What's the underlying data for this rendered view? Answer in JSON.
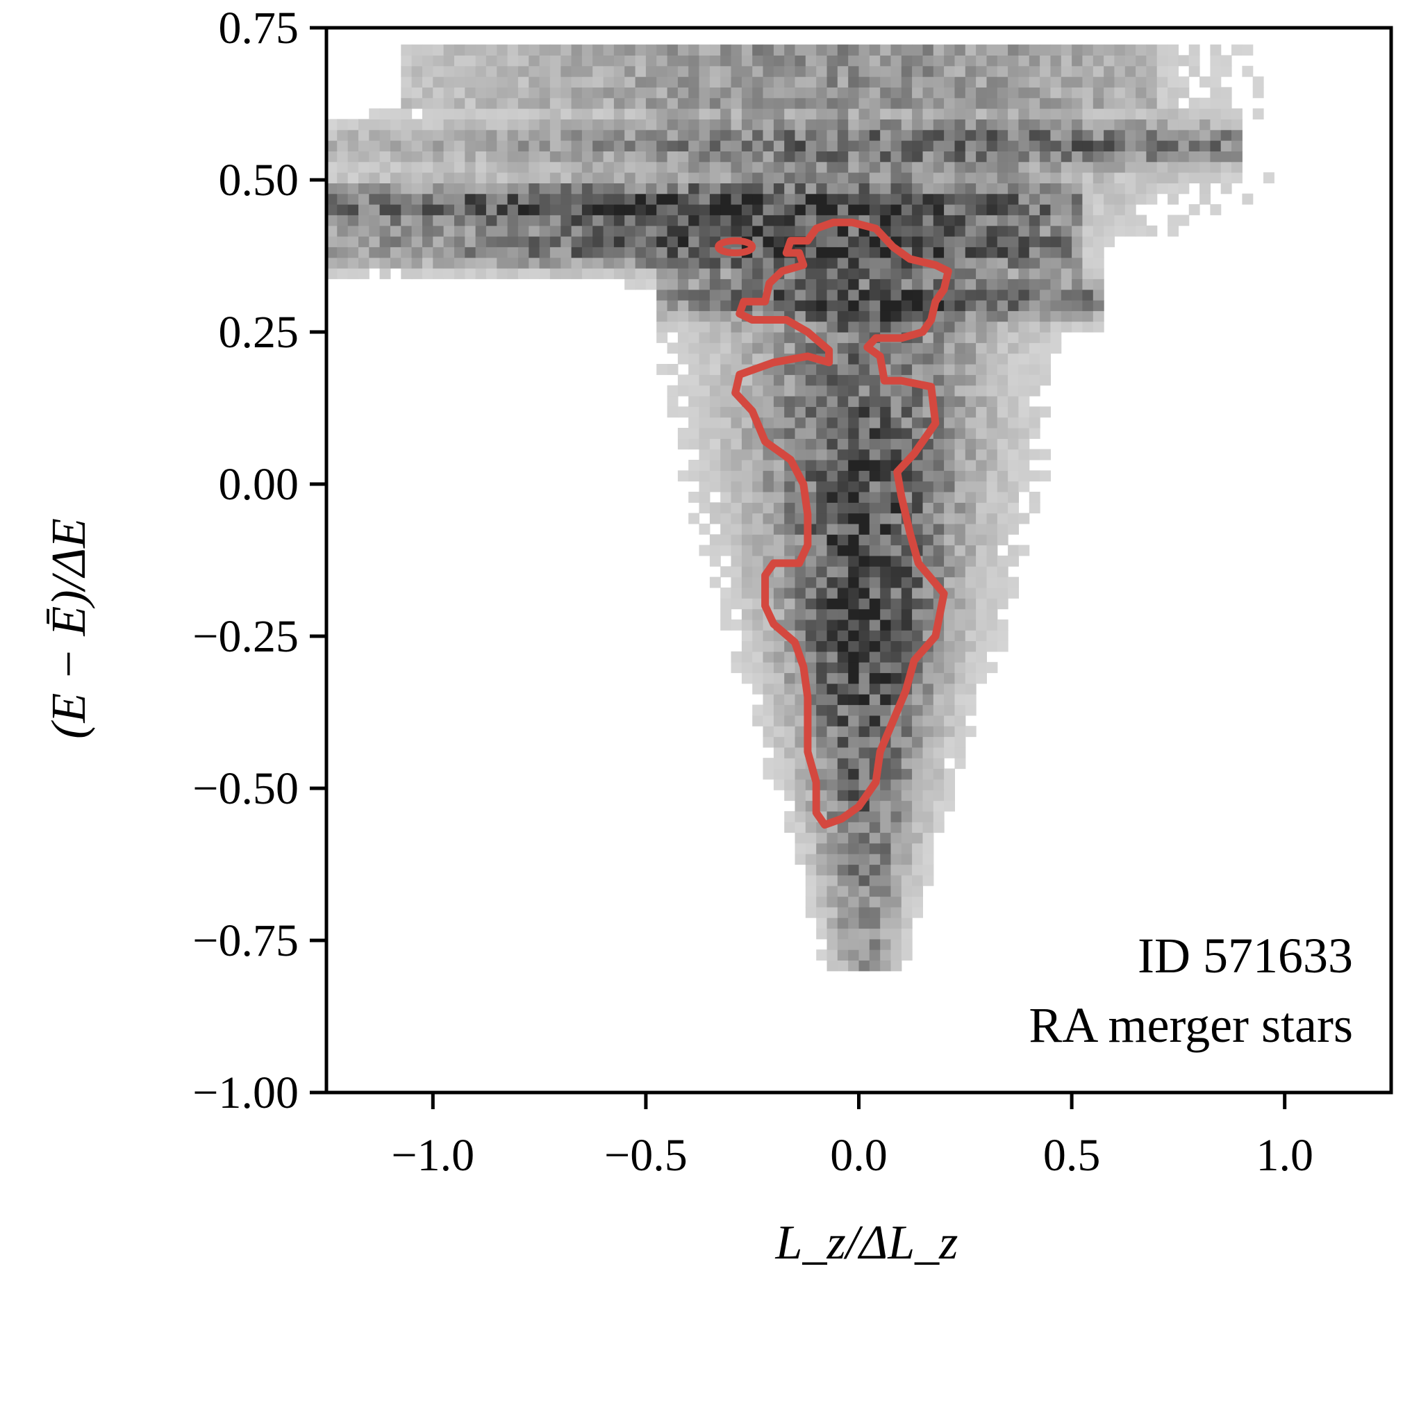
{
  "chart_data": {
    "type": "heatmap",
    "title": "",
    "xlabel": "L_z/ΔL_z",
    "ylabel": "(E − Ē)/ΔE",
    "xlim": [
      -1.25,
      1.25
    ],
    "ylim": [
      -1.0,
      0.75
    ],
    "x_ticks": [
      -1.0,
      -0.5,
      0.0,
      0.5,
      1.0
    ],
    "x_tick_labels": [
      "−1.0",
      "−0.5",
      "0.0",
      "0.5",
      "1.0"
    ],
    "y_ticks": [
      0.75,
      0.5,
      0.25,
      0.0,
      -0.25,
      -0.5,
      -0.75,
      -1.0
    ],
    "y_tick_labels": [
      "0.75",
      "0.50",
      "0.25",
      "0.00",
      "−0.25",
      "−0.50",
      "−0.75",
      "−1.00"
    ],
    "grid": false,
    "colormap": "greys",
    "density_description": "2D histogram of stars in (Lz, E) space: wedge shape, broad near E=0.4-0.55 spanning Lz -1.25..0.9, narrowing toward E=-0.75 at Lz≈0",
    "density_ridges": [
      {
        "y": 0.55,
        "x_min": -1.25,
        "x_max": 0.9,
        "peak_x": 0.75,
        "strength": 0.45
      },
      {
        "y": 0.45,
        "x_min": -1.25,
        "x_max": 0.5,
        "peak_x": -0.7,
        "strength": 0.65
      },
      {
        "y": 0.38,
        "x_min": -1.25,
        "x_max": 0.5,
        "peak_x": -0.2,
        "strength": 0.6
      },
      {
        "y": 0.3,
        "x_min": -0.5,
        "x_max": 0.55,
        "peak_x": 0.35,
        "strength": 0.5
      }
    ],
    "contour": {
      "color": "#d4483f",
      "level": "enclosing dense core",
      "main": [
        [
          -0.015,
          0.43
        ],
        [
          0.04,
          0.42
        ],
        [
          0.08,
          0.39
        ],
        [
          0.12,
          0.37
        ],
        [
          0.18,
          0.36
        ],
        [
          0.21,
          0.35
        ],
        [
          0.2,
          0.32
        ],
        [
          0.18,
          0.3
        ],
        [
          0.17,
          0.27
        ],
        [
          0.15,
          0.25
        ],
        [
          0.1,
          0.24
        ],
        [
          0.04,
          0.24
        ],
        [
          0.02,
          0.225
        ],
        [
          0.05,
          0.21
        ],
        [
          0.06,
          0.17
        ],
        [
          0.1,
          0.17
        ],
        [
          0.17,
          0.16
        ],
        [
          0.18,
          0.1
        ],
        [
          0.13,
          0.05
        ],
        [
          0.09,
          0.02
        ],
        [
          0.1,
          -0.02
        ],
        [
          0.12,
          -0.08
        ],
        [
          0.14,
          -0.13
        ],
        [
          0.2,
          -0.18
        ],
        [
          0.18,
          -0.25
        ],
        [
          0.13,
          -0.29
        ],
        [
          0.11,
          -0.34
        ],
        [
          0.08,
          -0.39
        ],
        [
          0.05,
          -0.44
        ],
        [
          0.04,
          -0.49
        ],
        [
          0.0,
          -0.53
        ],
        [
          -0.04,
          -0.55
        ],
        [
          -0.08,
          -0.56
        ],
        [
          -0.1,
          -0.54
        ],
        [
          -0.1,
          -0.49
        ],
        [
          -0.12,
          -0.44
        ],
        [
          -0.12,
          -0.35
        ],
        [
          -0.13,
          -0.3
        ],
        [
          -0.15,
          -0.26
        ],
        [
          -0.2,
          -0.23
        ],
        [
          -0.22,
          -0.2
        ],
        [
          -0.22,
          -0.15
        ],
        [
          -0.2,
          -0.13
        ],
        [
          -0.14,
          -0.13
        ],
        [
          -0.12,
          -0.1
        ],
        [
          -0.12,
          -0.05
        ],
        [
          -0.13,
          0.0
        ],
        [
          -0.16,
          0.04
        ],
        [
          -0.22,
          0.07
        ],
        [
          -0.25,
          0.12
        ],
        [
          -0.29,
          0.15
        ],
        [
          -0.28,
          0.18
        ],
        [
          -0.2,
          0.2
        ],
        [
          -0.12,
          0.21
        ],
        [
          -0.07,
          0.2
        ],
        [
          -0.07,
          0.22
        ],
        [
          -0.12,
          0.25
        ],
        [
          -0.17,
          0.27
        ],
        [
          -0.25,
          0.27
        ],
        [
          -0.28,
          0.28
        ],
        [
          -0.27,
          0.3
        ],
        [
          -0.22,
          0.3
        ],
        [
          -0.21,
          0.33
        ],
        [
          -0.18,
          0.35
        ],
        [
          -0.13,
          0.36
        ],
        [
          -0.14,
          0.38
        ],
        [
          -0.17,
          0.38
        ],
        [
          -0.16,
          0.4
        ],
        [
          -0.12,
          0.4
        ],
        [
          -0.1,
          0.42
        ],
        [
          -0.06,
          0.43
        ]
      ],
      "island": {
        "cx": -0.29,
        "cy": 0.39,
        "rx": 0.04,
        "ry": 0.01
      }
    },
    "annotations": [
      "ID 571633",
      "RA merger stars"
    ]
  }
}
